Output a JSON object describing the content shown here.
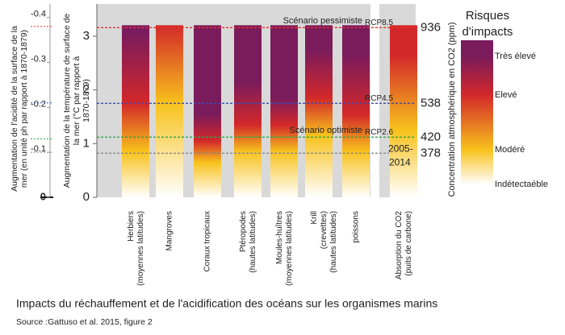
{
  "chart_data": {
    "type": "ember",
    "caption": "Impacts du réchauffement et de l'acidification des océans sur les organismes marins",
    "source": "Source :Gattuso et al. 2015, figure 2",
    "acid_ylabel": [
      "Augmentation de l'acidité de la surface de la",
      "mer (en unité ph par rapport à 1870-1879)"
    ],
    "ylabel": [
      "Augmentation de la température de surface de",
      "la mer (°C par rapport à",
      "1870-1879)"
    ],
    "y2label": "Concentration atmosphérique en CO2 (ppm)",
    "ylim": [
      0,
      3.6
    ],
    "yticks": [
      0,
      1,
      2,
      3
    ],
    "acid_ylim": [
      0,
      -0.43
    ],
    "acid_yticks": [
      0,
      -0.1,
      -0.2,
      -0.3,
      -0.4
    ],
    "categories": [
      "Herbiers (moyennes latitudes)",
      "Mangroves",
      "Coraux tropicaux",
      "Ptéropodes (hautes latitudes)",
      "Moules-huîtres (moyennes latitudes)",
      "Krill (crevettes) (hautes latitudes)",
      "poissons",
      "Absorption du CO2 (puits de carbone)"
    ],
    "legend_title": [
      "Risques",
      "d'impacts"
    ],
    "series": [
      {
        "name": "Indétectaéble",
        "color": "#ffffff",
        "values": [
          0,
          0,
          0,
          0,
          0,
          0,
          0,
          0
        ]
      },
      {
        "name": "Modéré",
        "color": "#f8c21c",
        "values": [
          0.6,
          1.5,
          0.4,
          0.6,
          0.6,
          0.9,
          0.6,
          1.0
        ]
      },
      {
        "name": "Elevé",
        "color": "#d3282a",
        "values": [
          1.5,
          3.1,
          0.8,
          1.1,
          1.1,
          1.6,
          1.3,
          2.4
        ]
      },
      {
        "name": "Très élevé",
        "color": "#7a1b5c",
        "values": [
          2.8,
          null,
          1.3,
          1.9,
          1.6,
          2.5,
          2.4,
          null
        ]
      }
    ],
    "reference_lines": [
      {
        "label": "RCP8.5",
        "text": "Scénario pessimiste",
        "temperature": 3.16,
        "acidity": -0.38,
        "co2": 936,
        "color": "#e8302a"
      },
      {
        "label": "RCP4.5",
        "temperature": 1.75,
        "acidity": -0.21,
        "co2": 538,
        "color": "#3a4db5"
      },
      {
        "label": "RCP2.6",
        "text": "Scénario optimiste",
        "temperature": 1.12,
        "acidity": -0.13,
        "co2": 420,
        "color": "#27a74a"
      },
      {
        "label": [
          "2005-",
          "2014"
        ],
        "temperature": 0.82,
        "acidity": -0.1,
        "co2": 378,
        "color": "#888888"
      }
    ]
  }
}
